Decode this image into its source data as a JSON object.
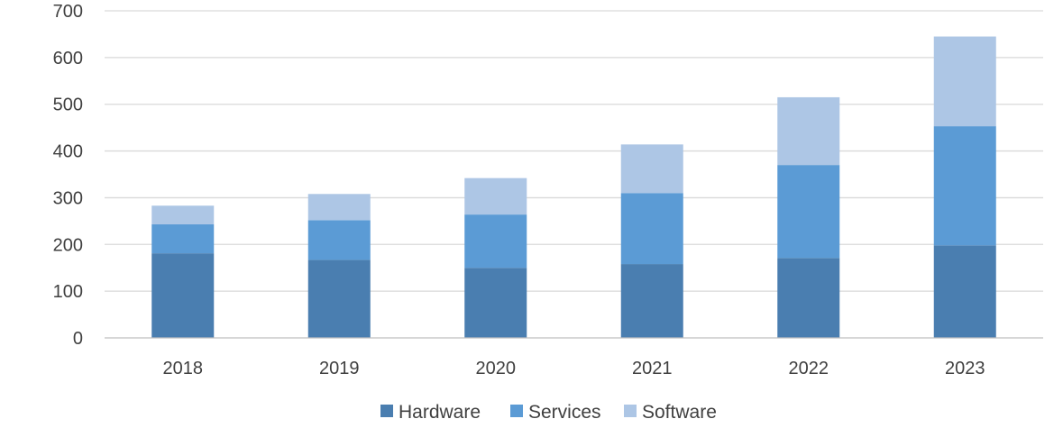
{
  "chart_data": {
    "type": "bar",
    "stacked": true,
    "title": "",
    "xlabel": "",
    "ylabel": "",
    "categories": [
      "2018",
      "2019",
      "2020",
      "2021",
      "2022",
      "2023"
    ],
    "ylim": [
      0,
      700
    ],
    "yticks": [
      0,
      100,
      200,
      300,
      400,
      500,
      600,
      700
    ],
    "ytick_labels": [
      "0",
      "100",
      "200",
      "300",
      "400",
      "500",
      "600",
      "700"
    ],
    "grid": true,
    "legend_position": "bottom",
    "series": [
      {
        "name": "Hardware",
        "color": "#4a7eb0",
        "values": [
          181,
          167,
          150,
          158,
          171,
          198
        ]
      },
      {
        "name": "Services",
        "color": "#5b9bd5",
        "values": [
          62,
          85,
          114,
          152,
          199,
          255
        ]
      },
      {
        "name": "Software",
        "color": "#adc6e5",
        "values": [
          40,
          56,
          78,
          104,
          145,
          192
        ]
      }
    ]
  }
}
